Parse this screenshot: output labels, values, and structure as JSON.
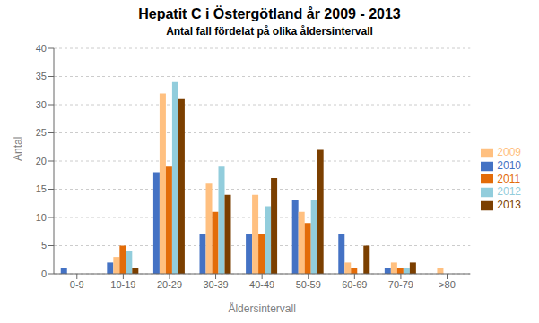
{
  "chart_data": {
    "type": "bar",
    "title": "Hepatit C i Östergötland år 2009 - 2013",
    "subtitle": "Antal fall fördelat på olika åldersintervall",
    "xlabel": "Åldersintervall",
    "ylabel": "Antal",
    "categories": [
      "0-9",
      "10-19",
      "20-29",
      "30-39",
      "40-49",
      "50-59",
      "60-69",
      "70-79",
      ">80"
    ],
    "series": [
      {
        "name": "2010",
        "color": "#4472C4",
        "values": [
          1,
          2,
          18,
          7,
          7,
          13,
          7,
          1,
          0
        ]
      },
      {
        "name": "2009",
        "color": "#FFC080",
        "values": [
          0,
          3,
          32,
          16,
          14,
          11,
          2,
          2,
          1
        ]
      },
      {
        "name": "2011",
        "color": "#E36C09",
        "values": [
          0,
          5,
          19,
          11,
          7,
          9,
          1,
          1,
          0
        ]
      },
      {
        "name": "2012",
        "color": "#92CDDC",
        "values": [
          0,
          4,
          34,
          19,
          12,
          13,
          0,
          1,
          0
        ]
      },
      {
        "name": "2013",
        "color": "#7B3F00",
        "values": [
          0,
          1,
          31,
          14,
          17,
          22,
          5,
          2,
          0
        ]
      }
    ],
    "ylim": [
      0,
      40
    ],
    "yticks": [
      0,
      5,
      10,
      15,
      20,
      25,
      30,
      35,
      40
    ],
    "grid": true,
    "legend": "right"
  }
}
